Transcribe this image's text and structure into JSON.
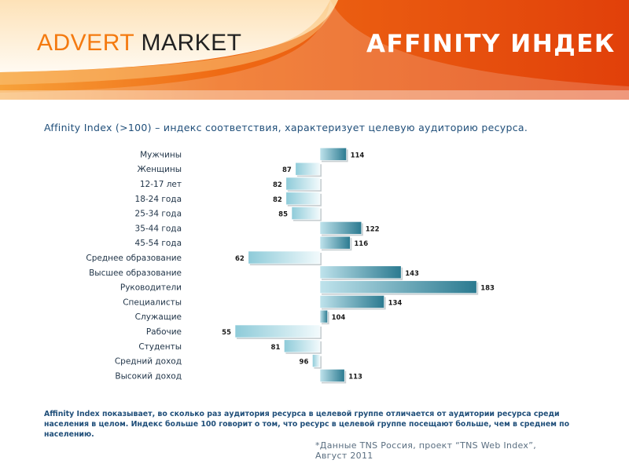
{
  "header": {
    "logo_part1": "ADVERT",
    "logo_part2": "MARKET",
    "title": "AFFINITY ИНДЕК"
  },
  "subtitle": "Affinity Index (>100) – индекс соответствия, характеризует целевую аудиторию ресурса.",
  "chart_data": {
    "type": "bar",
    "orientation": "horizontal",
    "baseline": 100,
    "categories": [
      "Мужчины",
      "Женщины",
      "12-17 лет",
      "18-24 года",
      "25-34 года",
      "35-44 года",
      "45-54 года",
      "Среднее образование",
      "Высшее образование",
      "Руководители",
      "Специалисты",
      "Служащие",
      "Рабочие",
      "Студенты",
      "Средний доход",
      "Высокий доход"
    ],
    "values": [
      114,
      87,
      82,
      82,
      85,
      122,
      116,
      62,
      143,
      183,
      134,
      104,
      55,
      81,
      96,
      113
    ],
    "title": "",
    "xlabel": "",
    "ylabel": ""
  },
  "note": "Affinity Index показывает, во сколько раз аудитория ресурса в целевой группе отличается от аудитории ресурса среди населения в целом.  Индекс больше 100 говорит о том, что ресурс в целевой группе посещают больше, чем в среднем по населению.",
  "source": {
    "line1": "*Данные TNS Россия, проект “TNS Web Index”,",
    "line2": "Август 2011"
  },
  "colors": {
    "brand_orange": "#f47a10",
    "header_red": "#e84a0c",
    "text_blue": "#1f4e79",
    "bar_dark": "#2e7d92",
    "bar_light": "#b9e0ea"
  }
}
